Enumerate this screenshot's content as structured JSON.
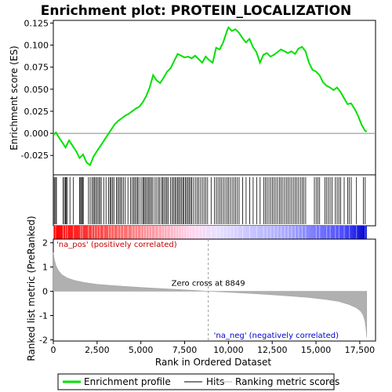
{
  "chart_data": {
    "type": "line",
    "title": "Enrichment plot: PROTEIN_LOCALIZATION",
    "es_panel": {
      "ylabel": "Enrichment score (ES)",
      "ylim": [
        -0.047,
        0.128
      ],
      "yticks": [
        -0.025,
        0.0,
        0.025,
        0.05,
        0.075,
        0.1,
        0.125
      ],
      "ytick_labels": [
        "-0.025",
        "0.000",
        "0.025",
        "0.050",
        "0.075",
        "0.100",
        "0.125"
      ],
      "series": [
        {
          "name": "Enrichment profile",
          "color": "#00e000",
          "x": [
            0,
            150,
            300,
            500,
            700,
            900,
            1100,
            1300,
            1500,
            1700,
            1900,
            2100,
            2300,
            2500,
            2700,
            2900,
            3100,
            3300,
            3500,
            3700,
            3900,
            4100,
            4300,
            4500,
            4700,
            4900,
            5100,
            5300,
            5500,
            5700,
            5900,
            6100,
            6300,
            6500,
            6700,
            6900,
            7100,
            7300,
            7500,
            7700,
            7900,
            8100,
            8300,
            8500,
            8700,
            8900,
            9100,
            9300,
            9500,
            9700,
            9900,
            10000,
            10200,
            10400,
            10600,
            10800,
            11000,
            11200,
            11400,
            11600,
            11800,
            12000,
            12200,
            12400,
            12600,
            12800,
            13000,
            13200,
            13400,
            13600,
            13800,
            14000,
            14200,
            14400,
            14600,
            14800,
            15000,
            15200,
            15400,
            15600,
            15800,
            16000,
            16200,
            16400,
            16600,
            16800,
            17000,
            17200,
            17400,
            17600,
            17800,
            17900
          ],
          "y": [
            -0.002,
            0.001,
            -0.004,
            -0.01,
            -0.016,
            -0.008,
            -0.014,
            -0.02,
            -0.028,
            -0.024,
            -0.033,
            -0.036,
            -0.026,
            -0.02,
            -0.014,
            -0.008,
            -0.002,
            0.004,
            0.01,
            0.014,
            0.017,
            0.02,
            0.022,
            0.025,
            0.028,
            0.03,
            0.035,
            0.042,
            0.052,
            0.066,
            0.06,
            0.057,
            0.063,
            0.07,
            0.074,
            0.082,
            0.09,
            0.088,
            0.086,
            0.087,
            0.085,
            0.088,
            0.084,
            0.08,
            0.087,
            0.083,
            0.08,
            0.097,
            0.095,
            0.103,
            0.115,
            0.12,
            0.116,
            0.118,
            0.114,
            0.108,
            0.103,
            0.107,
            0.098,
            0.092,
            0.08,
            0.089,
            0.091,
            0.087,
            0.089,
            0.092,
            0.095,
            0.093,
            0.091,
            0.093,
            0.09,
            0.096,
            0.098,
            0.093,
            0.08,
            0.072,
            0.07,
            0.066,
            0.058,
            0.054,
            0.052,
            0.049,
            0.052,
            0.047,
            0.04,
            0.033,
            0.034,
            0.028,
            0.02,
            0.01,
            0.003,
            0.002
          ]
        }
      ]
    },
    "hits": {
      "name": "Hits",
      "positions": [
        10,
        60,
        130,
        180,
        560,
        630,
        690,
        740,
        800,
        950,
        1150,
        1500,
        1560,
        1610,
        1660,
        1710,
        2010,
        2110,
        2210,
        2290,
        2360,
        2430,
        2510,
        2590,
        2660,
        2740,
        2880,
        3010,
        3160,
        3240,
        3310,
        3390,
        3460,
        3610,
        3680,
        3760,
        3840,
        3910,
        4010,
        4110,
        4260,
        4410,
        4510,
        4590,
        4660,
        4740,
        4810,
        4890,
        5010,
        5110,
        5160,
        5240,
        5310,
        5390,
        5460,
        5540,
        5610,
        5690,
        5810,
        5910,
        6010,
        6090,
        6190,
        6260,
        6340,
        6420,
        6490,
        6570,
        6690,
        6790,
        6860,
        6940,
        7010,
        7090,
        7160,
        7240,
        7310,
        7390,
        7460,
        7540,
        7610,
        7690,
        7760,
        7840,
        7910,
        8010,
        8110,
        8210,
        8310,
        8410,
        8510,
        8610,
        8710,
        8810,
        9010,
        9210,
        9310,
        9410,
        9510,
        9610,
        9710,
        9810,
        9910,
        10010,
        10110,
        10210,
        10310,
        10410,
        10510,
        10610,
        10810,
        11010,
        11210,
        11410,
        11610,
        11810,
        12010,
        12110,
        12210,
        12310,
        12410,
        12510,
        12610,
        12710,
        12810,
        12910,
        13010,
        13110,
        13210,
        13310,
        13410,
        13510,
        13610,
        13710,
        13810,
        13910,
        14010,
        14110,
        14210,
        14310,
        14410,
        14910,
        15010,
        15110,
        15210,
        15510,
        15610,
        15710,
        15810,
        15910,
        16110,
        16210,
        16310,
        16410,
        16610,
        16810,
        16910,
        17010,
        17310,
        17710,
        17810
      ]
    },
    "rank_bar": {
      "label_pos": "'na_pos' (positively correlated)",
      "label_neg": "'na_neg' (negatively correlated)",
      "color_pos": "#ff0000",
      "color_neg": "#0000ff",
      "color_pos_label": "#cc0000",
      "color_neg_label": "#0000cc"
    },
    "metric_panel": {
      "name": "Ranking metric scores",
      "ylabel": "Ranked list metric (PreRanked)",
      "xlabel": "Rank in Ordered Dataset",
      "ylim": [
        -2.05,
        2.15
      ],
      "yticks": [
        -2,
        -1,
        0,
        1,
        2
      ],
      "ytick_labels": [
        "-2",
        "-1",
        "0",
        "1",
        "2"
      ],
      "xlim": [
        0,
        18400
      ],
      "xticks": [
        0,
        2500,
        5000,
        7500,
        10000,
        12500,
        15000,
        17500
      ],
      "xtick_labels": [
        "0",
        "2,500",
        "5,000",
        "7,500",
        "10,000",
        "12,500",
        "15,000",
        "17,500"
      ],
      "zero_cross": 8849,
      "zero_cross_label": "Zero cross at 8849",
      "n_genes": 17900,
      "fill_color": "#b0b0b0",
      "curve_x": [
        0,
        50,
        150,
        300,
        500,
        800,
        1200,
        1800,
        2500,
        3500,
        5000,
        6500,
        8000,
        8849,
        10000,
        11500,
        13000,
        14500,
        15500,
        16300,
        16900,
        17300,
        17550,
        17700,
        17800,
        17850,
        17900
      ],
      "curve_y": [
        1.6,
        1.35,
        1.05,
        0.85,
        0.68,
        0.55,
        0.45,
        0.36,
        0.29,
        0.23,
        0.16,
        0.1,
        0.04,
        0.0,
        -0.04,
        -0.1,
        -0.17,
        -0.25,
        -0.33,
        -0.42,
        -0.55,
        -0.68,
        -0.82,
        -1.0,
        -1.25,
        -1.5,
        -1.9
      ]
    },
    "legend": {
      "items": [
        {
          "label": "Enrichment profile",
          "color": "#00e000",
          "kind": "thick-line"
        },
        {
          "label": "Hits",
          "color": "#000000",
          "kind": "line"
        },
        {
          "label": "Ranking metric scores",
          "color": "#b0b0b0",
          "kind": "line"
        }
      ]
    }
  }
}
